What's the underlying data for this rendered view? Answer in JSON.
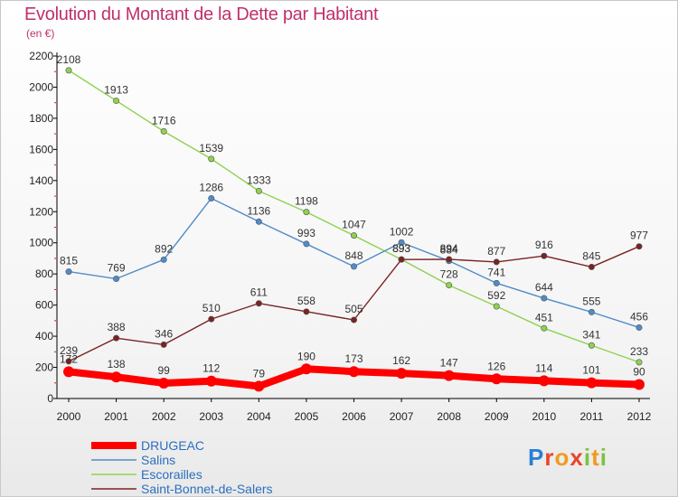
{
  "header": {
    "title": "Evolution du Montant de la Dette par Habitant",
    "subtitle": "(en €)"
  },
  "logo": {
    "text": "Proxiti",
    "colors": [
      "#2a7fd4",
      "#e8452c",
      "#f39a1e",
      "#7cc242"
    ]
  },
  "chart_data": {
    "type": "line",
    "title": "Evolution du Montant de la Dette par Habitant",
    "ylabel": "(en €)",
    "xlabel": "",
    "x": [
      "2000",
      "2001",
      "2002",
      "2003",
      "2004",
      "2005",
      "2006",
      "2007",
      "2008",
      "2009",
      "2010",
      "2011",
      "2012"
    ],
    "yticks": [
      0,
      200,
      400,
      600,
      800,
      1000,
      1200,
      1400,
      1600,
      1800,
      2000,
      2200
    ],
    "ylim": [
      0,
      2200
    ],
    "grid": false,
    "legend_position": "bottom-left",
    "series": [
      {
        "name": "DRUGEAC",
        "color": "#ff0000",
        "values": [
          172,
          138,
          99,
          112,
          79,
          190,
          173,
          162,
          147,
          126,
          114,
          101,
          90
        ],
        "labels": [
          "172",
          "138",
          "99",
          "112",
          "79",
          "190",
          "173",
          "162",
          "147",
          "126",
          "114",
          "101",
          "90"
        ]
      },
      {
        "name": "Salins",
        "color": "#4f8cc9",
        "values": [
          815,
          769,
          892,
          1286,
          1136,
          993,
          848,
          1002,
          884,
          741,
          644,
          555,
          456
        ],
        "labels": [
          "815",
          "769",
          "892",
          "1286",
          "1136",
          "993",
          "848",
          "1002",
          "884",
          "741",
          "644",
          "555",
          "456"
        ]
      },
      {
        "name": "Escorailles",
        "color": "#8fd14f",
        "values": [
          2108,
          1913,
          1716,
          1539,
          1333,
          1198,
          1047,
          893,
          728,
          592,
          451,
          341,
          233
        ],
        "labels": [
          "2108",
          "1913",
          "1716",
          "1539",
          "1333",
          "1198",
          "1047",
          "893",
          "728",
          "592",
          "451",
          "341",
          "233"
        ]
      },
      {
        "name": "Saint-Bonnet-de-Salers",
        "color": "#7a2323",
        "values": [
          239,
          388,
          346,
          510,
          611,
          558,
          505,
          893,
          894,
          877,
          916,
          845,
          977
        ],
        "labels": [
          "239",
          "388",
          "346",
          "510",
          "611",
          "558",
          "505",
          "893",
          "894",
          "877",
          "916",
          "845",
          "977"
        ]
      }
    ]
  }
}
